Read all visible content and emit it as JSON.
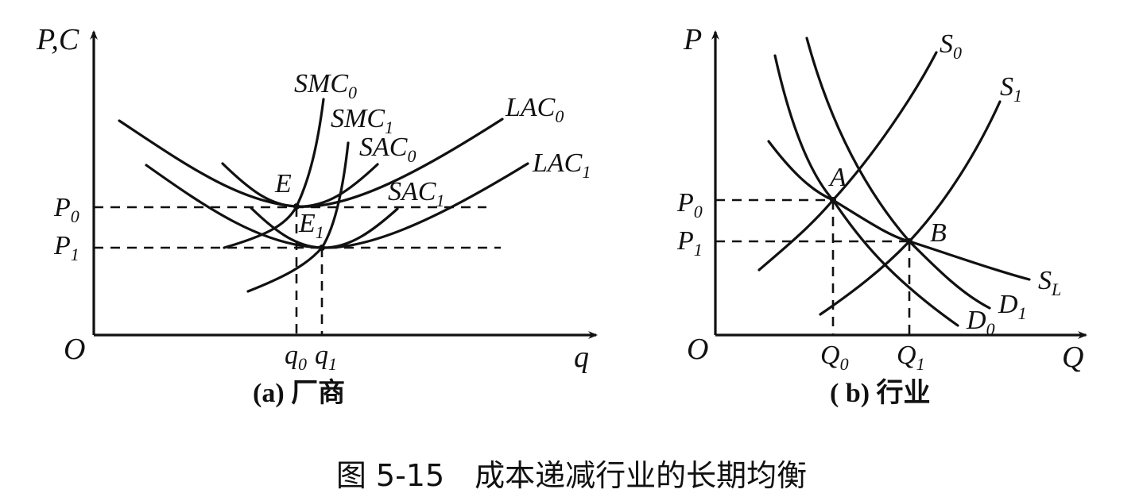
{
  "panel_a": {
    "caption": "(a) 厂商",
    "y_axis": {
      "base": "P",
      "sep": ",",
      "extra": "C"
    },
    "x_axis": "q",
    "origin": "O",
    "price_labels": [
      {
        "base": "P",
        "sub": "0"
      },
      {
        "base": "P",
        "sub": "1"
      }
    ],
    "qty_labels": [
      {
        "base": "q",
        "sub": "0"
      },
      {
        "base": "q",
        "sub": "1"
      }
    ],
    "curves": {
      "SMC0": {
        "base": "SMC",
        "sub": "0"
      },
      "SMC1": {
        "base": "SMC",
        "sub": "1"
      },
      "SAC0": {
        "base": "SAC",
        "sub": "0"
      },
      "SAC1": {
        "base": "SAC",
        "sub": "1"
      },
      "LAC0": {
        "base": "LAC",
        "sub": "0"
      },
      "LAC1": {
        "base": "LAC",
        "sub": "1"
      }
    },
    "points": {
      "E": {
        "base": "E",
        "sub": ""
      },
      "E1": {
        "base": "E",
        "sub": "1"
      }
    }
  },
  "panel_b": {
    "caption": "( b) 行业",
    "y_axis": "P",
    "x_axis": "Q",
    "origin": "O",
    "price_labels": [
      {
        "base": "P",
        "sub": "0"
      },
      {
        "base": "P",
        "sub": "1"
      }
    ],
    "qty_labels": [
      {
        "base": "Q",
        "sub": "0"
      },
      {
        "base": "Q",
        "sub": "1"
      }
    ],
    "curves": {
      "S0": {
        "base": "S",
        "sub": "0"
      },
      "S1": {
        "base": "S",
        "sub": "1"
      },
      "SL": {
        "base": "S",
        "sub": "L"
      },
      "D0": {
        "base": "D",
        "sub": "0"
      },
      "D1": {
        "base": "D",
        "sub": "1"
      }
    },
    "points": {
      "A": "A",
      "B": "B"
    }
  },
  "figure_caption": {
    "number": "图 5-15",
    "title": "成本递减行业的长期均衡"
  }
}
